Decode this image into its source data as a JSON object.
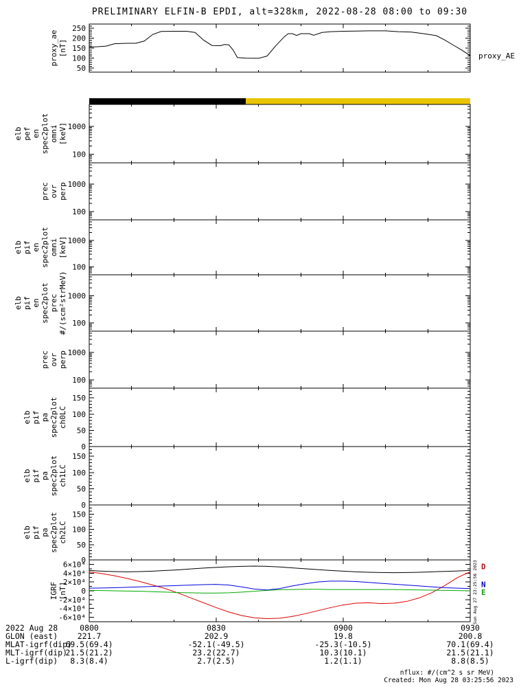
{
  "title": "PRELIMINARY ELFIN-B EPDI, alt=328km, 2022-08-28 08:00 to 09:30",
  "time_axis": {
    "date_label": "2022 Aug 28",
    "ticks": [
      "0800",
      "0830",
      "0900",
      "0930"
    ]
  },
  "bottom_rows": [
    {
      "label": "GLON (east)",
      "values": [
        "221.7",
        "202.9",
        "19.8",
        "200.8"
      ]
    },
    {
      "label": "MLAT-igrf(dip)",
      "values": [
        "69.5(69.4)",
        "-52.1(-49.5)",
        "-25.3(-10.5)",
        "70.1(69.4)"
      ]
    },
    {
      "label": "MLT-igrf(dip)",
      "values": [
        "21.5(21.2)",
        "23.2(22.7)",
        "10.3(10.1)",
        "21.5(21.1)"
      ]
    },
    {
      "label": "L-igrf(dip)",
      "values": [
        "8.3(8.4)",
        "2.7(2.5)",
        "1.2(1.1)",
        "8.8(8.5)"
      ]
    }
  ],
  "footer": {
    "nflux_units": "nflux: #/(cm^2 s sr MeV)",
    "created": "Created: Mon Aug 28 03:25:56 2023",
    "side_timestamp": "Sun Aug 27 23:25:56 2023"
  },
  "chart_data": [
    {
      "id": "proxy_ae",
      "type": "line",
      "scale": "linear",
      "title": "proxy_AE index",
      "ylim": [
        30,
        270
      ],
      "yticks": [
        250,
        200,
        150,
        100,
        50
      ],
      "ytick_labels": [
        "250",
        "200",
        "150",
        "100",
        "50"
      ],
      "minor_step": 10,
      "ylabel_lines": [
        "proxy_ae",
        "[nT]"
      ],
      "right_label": "proxy_AE",
      "color": "#000000",
      "x_minutes": [
        0,
        2,
        4,
        6,
        9,
        11,
        13,
        15,
        17,
        20,
        23,
        25,
        27,
        29,
        31,
        32,
        33,
        34,
        35,
        37,
        40,
        42,
        44,
        46,
        47,
        48,
        49,
        50,
        52,
        53,
        55,
        57,
        60,
        63,
        66,
        70,
        73,
        76,
        79,
        82,
        84,
        86,
        88,
        90
      ],
      "values": [
        155,
        157,
        160,
        172,
        174,
        174,
        185,
        218,
        233,
        234,
        234,
        228,
        190,
        163,
        162,
        168,
        166,
        140,
        103,
        100,
        99,
        110,
        160,
        205,
        222,
        222,
        213,
        222,
        222,
        214,
        228,
        232,
        234,
        235,
        236,
        236,
        232,
        230,
        222,
        212,
        190,
        165,
        140,
        112
      ]
    },
    {
      "id": "science_zone_bar",
      "type": "segments",
      "segments": [
        {
          "color": "#000000",
          "t0": 0,
          "t1": 37
        },
        {
          "color": "#e9c400",
          "t0": 37,
          "t1": 90
        }
      ]
    },
    {
      "id": "elb_pef_en_spec2plot_omni",
      "type": "empty",
      "scale": "log",
      "ylim": [
        50,
        6000
      ],
      "yticks": [
        1000,
        100
      ],
      "ytick_labels": [
        "1000",
        "100"
      ],
      "ylabel_lines": [
        "elb",
        "pef",
        "en",
        "spec2plot",
        "omni",
        "[keV]"
      ]
    },
    {
      "id": "prec_ovr_perp_1",
      "type": "empty",
      "scale": "log",
      "ylim": [
        50,
        6000
      ],
      "yticks": [
        1000,
        100
      ],
      "ytick_labels": [
        "1000",
        "100"
      ],
      "ylabel_lines": [
        "prec",
        "ovr",
        "perp"
      ]
    },
    {
      "id": "elb_pif_en_spec2plot_omni",
      "type": "empty",
      "scale": "log",
      "ylim": [
        50,
        6000
      ],
      "yticks": [
        1000,
        100
      ],
      "ytick_labels": [
        "1000",
        "100"
      ],
      "ylabel_lines": [
        "elb",
        "pif",
        "en",
        "spec2plot",
        "omni",
        "[keV]"
      ]
    },
    {
      "id": "elb_pif_en_spec2plot_prec",
      "type": "empty",
      "scale": "log",
      "ylim": [
        50,
        6000
      ],
      "yticks": [
        1000,
        100
      ],
      "ytick_labels": [
        "1000",
        "100"
      ],
      "ylabel_lines": [
        "elb",
        "pif",
        "en",
        "spec2plot",
        "prec",
        "#/(scm²strMeV)"
      ]
    },
    {
      "id": "prec_ovr_perp_2",
      "type": "empty",
      "scale": "log",
      "ylim": [
        50,
        6000
      ],
      "yticks": [
        1000,
        100
      ],
      "ytick_labels": [
        "1000",
        "100"
      ],
      "ylabel_lines": [
        "prec",
        "ovr",
        "perp"
      ]
    },
    {
      "id": "elb_pif_pa_spec2plot_ch0LC",
      "type": "empty",
      "scale": "linear",
      "ylim": [
        0,
        180
      ],
      "yticks": [
        150,
        100,
        50,
        0
      ],
      "ytick_labels": [
        "150",
        "100",
        "50",
        "0"
      ],
      "minor_step": 10,
      "ylabel_lines": [
        "elb",
        "pif",
        "pa",
        "spec2plot",
        "ch0LC"
      ]
    },
    {
      "id": "elb_pif_pa_spec2plot_ch1LC",
      "type": "empty",
      "scale": "linear",
      "ylim": [
        0,
        180
      ],
      "yticks": [
        150,
        100,
        50,
        0
      ],
      "ytick_labels": [
        "150",
        "100",
        "50",
        "0"
      ],
      "minor_step": 10,
      "ylabel_lines": [
        "elb",
        "pif",
        "pa",
        "spec2plot",
        "ch1LC"
      ]
    },
    {
      "id": "elb_pif_pa_spec2plot_ch2LC",
      "type": "empty",
      "scale": "linear",
      "ylim": [
        0,
        180
      ],
      "yticks": [
        150,
        100,
        50,
        0
      ],
      "ytick_labels": [
        "150",
        "100",
        "50",
        "0"
      ],
      "minor_step": 10,
      "ylabel_lines": [
        "elb",
        "pif",
        "pa",
        "spec2plot",
        "ch2LC"
      ]
    },
    {
      "id": "igrf",
      "type": "multiline",
      "scale": "linear",
      "title": "IGRF magnetic field components",
      "ylim": [
        -70000,
        70000
      ],
      "yticks": [
        60000,
        40000,
        20000,
        0,
        -20000,
        -40000,
        -60000
      ],
      "ytick_labels": [
        "6×10⁴",
        "4×10⁴",
        "2×10⁴",
        "0",
        "-2×10⁴",
        "-4×10⁴",
        "-6×10⁴"
      ],
      "minor_step": 10000,
      "ylabel_lines": [
        "IGRF",
        "[nT]"
      ],
      "x_minutes": [
        0,
        3,
        6,
        9,
        12,
        15,
        18,
        21,
        24,
        27,
        30,
        33,
        36,
        39,
        42,
        45,
        48,
        51,
        54,
        57,
        60,
        63,
        66,
        69,
        72,
        75,
        78,
        81,
        84,
        87,
        90
      ],
      "series": [
        {
          "name": "B",
          "color": "#000000",
          "values": [
            46000,
            44500,
            43500,
            43000,
            43500,
            44500,
            46000,
            47500,
            49500,
            51500,
            53000,
            54500,
            55500,
            56000,
            55500,
            54000,
            52000,
            50000,
            48000,
            46000,
            44500,
            43000,
            42000,
            41500,
            41000,
            41500,
            42000,
            43000,
            44000,
            45000,
            46000
          ]
        },
        {
          "name": "D",
          "color": "#dd0000",
          "values": [
            43000,
            39000,
            34000,
            28000,
            21000,
            13000,
            5000,
            -5000,
            -16000,
            -27000,
            -38000,
            -48000,
            -56000,
            -61000,
            -63000,
            -62000,
            -58000,
            -52000,
            -45000,
            -38000,
            -32000,
            -28000,
            -27000,
            -29000,
            -28000,
            -24000,
            -16000,
            -4000,
            12000,
            30000,
            43000
          ]
        },
        {
          "name": "N",
          "color": "#0000dd",
          "values": [
            6000,
            6500,
            7000,
            8000,
            9000,
            10000,
            11000,
            12000,
            13000,
            14000,
            14500,
            13000,
            9000,
            4000,
            2000,
            5000,
            11000,
            16000,
            20000,
            22000,
            22000,
            21000,
            19000,
            17000,
            15000,
            13000,
            11000,
            9000,
            7000,
            6000,
            5000
          ]
        },
        {
          "name": "E",
          "color": "#00aa00",
          "values": [
            1000,
            500,
            0,
            -500,
            -1000,
            -2000,
            -3000,
            -4000,
            -4500,
            -5000,
            -5000,
            -4500,
            -3000,
            -1000,
            1000,
            2500,
            3000,
            3500,
            3500,
            3000,
            3000,
            3000,
            3000,
            3000,
            3000,
            2500,
            2000,
            1500,
            1000,
            500,
            0
          ]
        }
      ],
      "right_labels": [
        {
          "text": "D",
          "color": "#dd0000",
          "v": 55000
        },
        {
          "text": "N",
          "color": "#0000dd",
          "v": 15000
        },
        {
          "text": "E",
          "color": "#00aa00",
          "v": -3000
        }
      ]
    }
  ]
}
